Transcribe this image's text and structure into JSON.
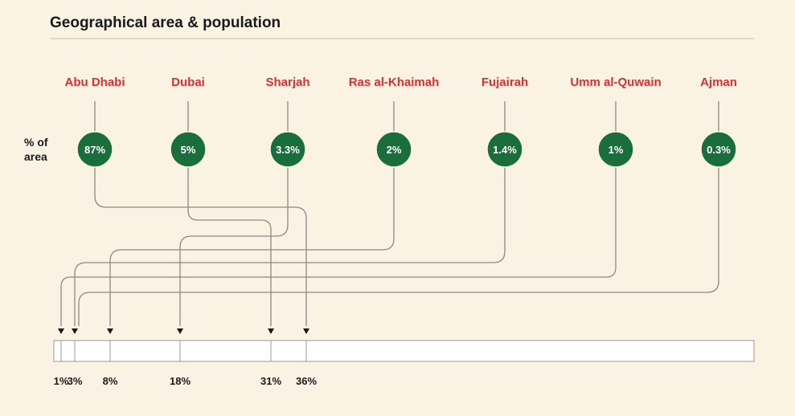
{
  "title": "Geographical area & population",
  "row_label": [
    "% of",
    "area"
  ],
  "colors": {
    "background": "#faf2e2",
    "label_red": "#dc2f2f",
    "circle_green": "#1a6e3b",
    "line_gray": "#8a8a8a",
    "text_dark": "#1a1a1a"
  },
  "emirates": [
    {
      "name": "Abu Dhabi",
      "area_label": "87%",
      "area_pct": 87,
      "population_label": "36%",
      "population_cum_pct": 36
    },
    {
      "name": "Dubai",
      "area_label": "5%",
      "area_pct": 5,
      "population_label": "31%",
      "population_cum_pct": 31
    },
    {
      "name": "Sharjah",
      "area_label": "3.3%",
      "area_pct": 3.3,
      "population_label": "18%",
      "population_cum_pct": 18
    },
    {
      "name": "Ras al-Khaimah",
      "area_label": "2%",
      "area_pct": 2,
      "population_label": "8%",
      "population_cum_pct": 8
    },
    {
      "name": "Fujairah",
      "area_label": "1.4%",
      "area_pct": 1.4,
      "population_label": "3%",
      "population_cum_pct": 3
    },
    {
      "name": "Umm al-Quwain",
      "area_label": "1%",
      "area_pct": 1,
      "population_label": "1%",
      "population_cum_pct": 1
    },
    {
      "name": "Ajman",
      "area_label": "0.3%",
      "area_pct": 0.3,
      "population_label": "",
      "population_cum_pct": 0
    }
  ],
  "population_axis": {
    "ticks": [
      "1%",
      "3%",
      "8%",
      "18%",
      "31%",
      "36%"
    ],
    "max": 100
  }
}
